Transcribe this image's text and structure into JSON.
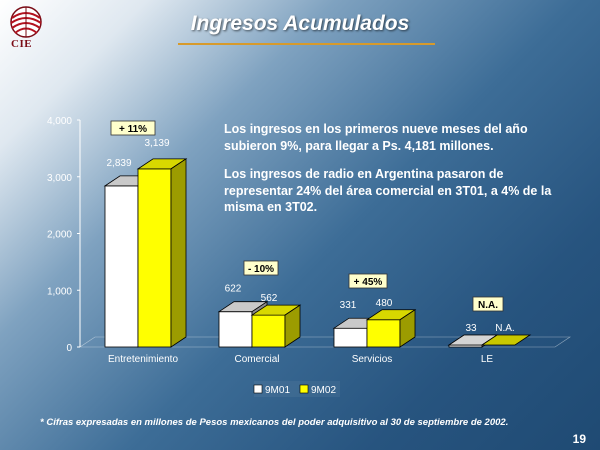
{
  "header": {
    "title": "Ingresos Acumulados",
    "logo_text": "CIE"
  },
  "description": [
    "Los ingresos en los primeros nueve meses del año subieron 9%, para llegar a Ps. 4,181 millones.",
    "Los ingresos de radio en Argentina pasaron de representar 24% del área comercial en 3T01, a 4% de la misma en 3T02."
  ],
  "footnote": "* Cifras expresadas en millones de Pesos mexicanos del poder adquisitivo al 30 de septiembre de 2002.",
  "page_number": "19",
  "colors": {
    "series_1": "#ffffff",
    "series_2": "#ffff00",
    "accent": "#d79a2b"
  },
  "chart_data": {
    "type": "bar",
    "categories": [
      "Entretenimiento",
      "Comercial",
      "Servicios",
      "LE"
    ],
    "series": [
      {
        "name": "9M01",
        "values": [
          2839,
          622,
          331,
          33
        ],
        "labels": [
          "2,839",
          "622",
          "331",
          "33"
        ]
      },
      {
        "name": "9M02",
        "values": [
          3139,
          562,
          480,
          null
        ],
        "labels": [
          "3,139",
          "562",
          "480",
          "N.A."
        ]
      }
    ],
    "change_labels": [
      "+ 11%",
      "- 10%",
      "+ 45%",
      "N.A."
    ],
    "yticks": [
      "0",
      "1,000",
      "2,000",
      "3,000",
      "4,000"
    ],
    "ylim": [
      0,
      4000
    ],
    "legend_position": "bottom"
  }
}
